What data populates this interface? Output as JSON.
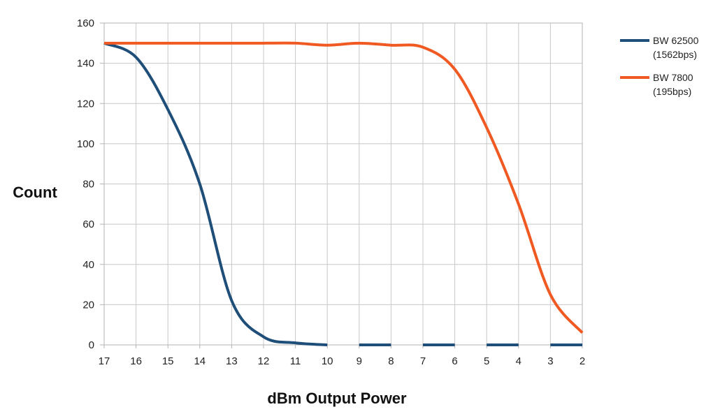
{
  "chart_data": {
    "type": "line",
    "title": "",
    "xlabel": "dBm Output Power",
    "ylabel": "Count",
    "x_ticks": [
      "17",
      "16",
      "15",
      "14",
      "13",
      "12",
      "11",
      "10",
      "9",
      "8",
      "7",
      "6",
      "5",
      "4",
      "3",
      "2"
    ],
    "y_ticks": [
      "0",
      "20",
      "40",
      "60",
      "80",
      "100",
      "120",
      "140",
      "160"
    ],
    "xlim": [
      17,
      2
    ],
    "x_reversed": true,
    "ylim": [
      0,
      160
    ],
    "grid": true,
    "legend_position": "right",
    "series": [
      {
        "name": "BW 62500\n(1562bps)",
        "color": "#1f4e79",
        "segments": [
          {
            "x": [
              17,
              16,
              15,
              14,
              13,
              12,
              11,
              10
            ],
            "y": [
              150,
              143,
              117,
              80,
              22,
              4,
              1,
              0
            ]
          },
          {
            "x": [
              9,
              8
            ],
            "y": [
              0,
              0
            ]
          },
          {
            "x": [
              7,
              6
            ],
            "y": [
              0,
              0
            ]
          },
          {
            "x": [
              5,
              4
            ],
            "y": [
              0,
              0
            ]
          },
          {
            "x": [
              3,
              2
            ],
            "y": [
              0,
              0
            ]
          }
        ]
      },
      {
        "name": "BW 7800\n(195bps)",
        "color": "#f05a22",
        "segments": [
          {
            "x": [
              17,
              16,
              15,
              14,
              13,
              12,
              11,
              10,
              9,
              8,
              7,
              6,
              5,
              4,
              3,
              2
            ],
            "y": [
              150,
              150,
              150,
              150,
              150,
              150,
              150,
              149,
              150,
              149,
              148,
              137,
              108,
              70,
              25,
              6
            ]
          }
        ]
      }
    ]
  }
}
